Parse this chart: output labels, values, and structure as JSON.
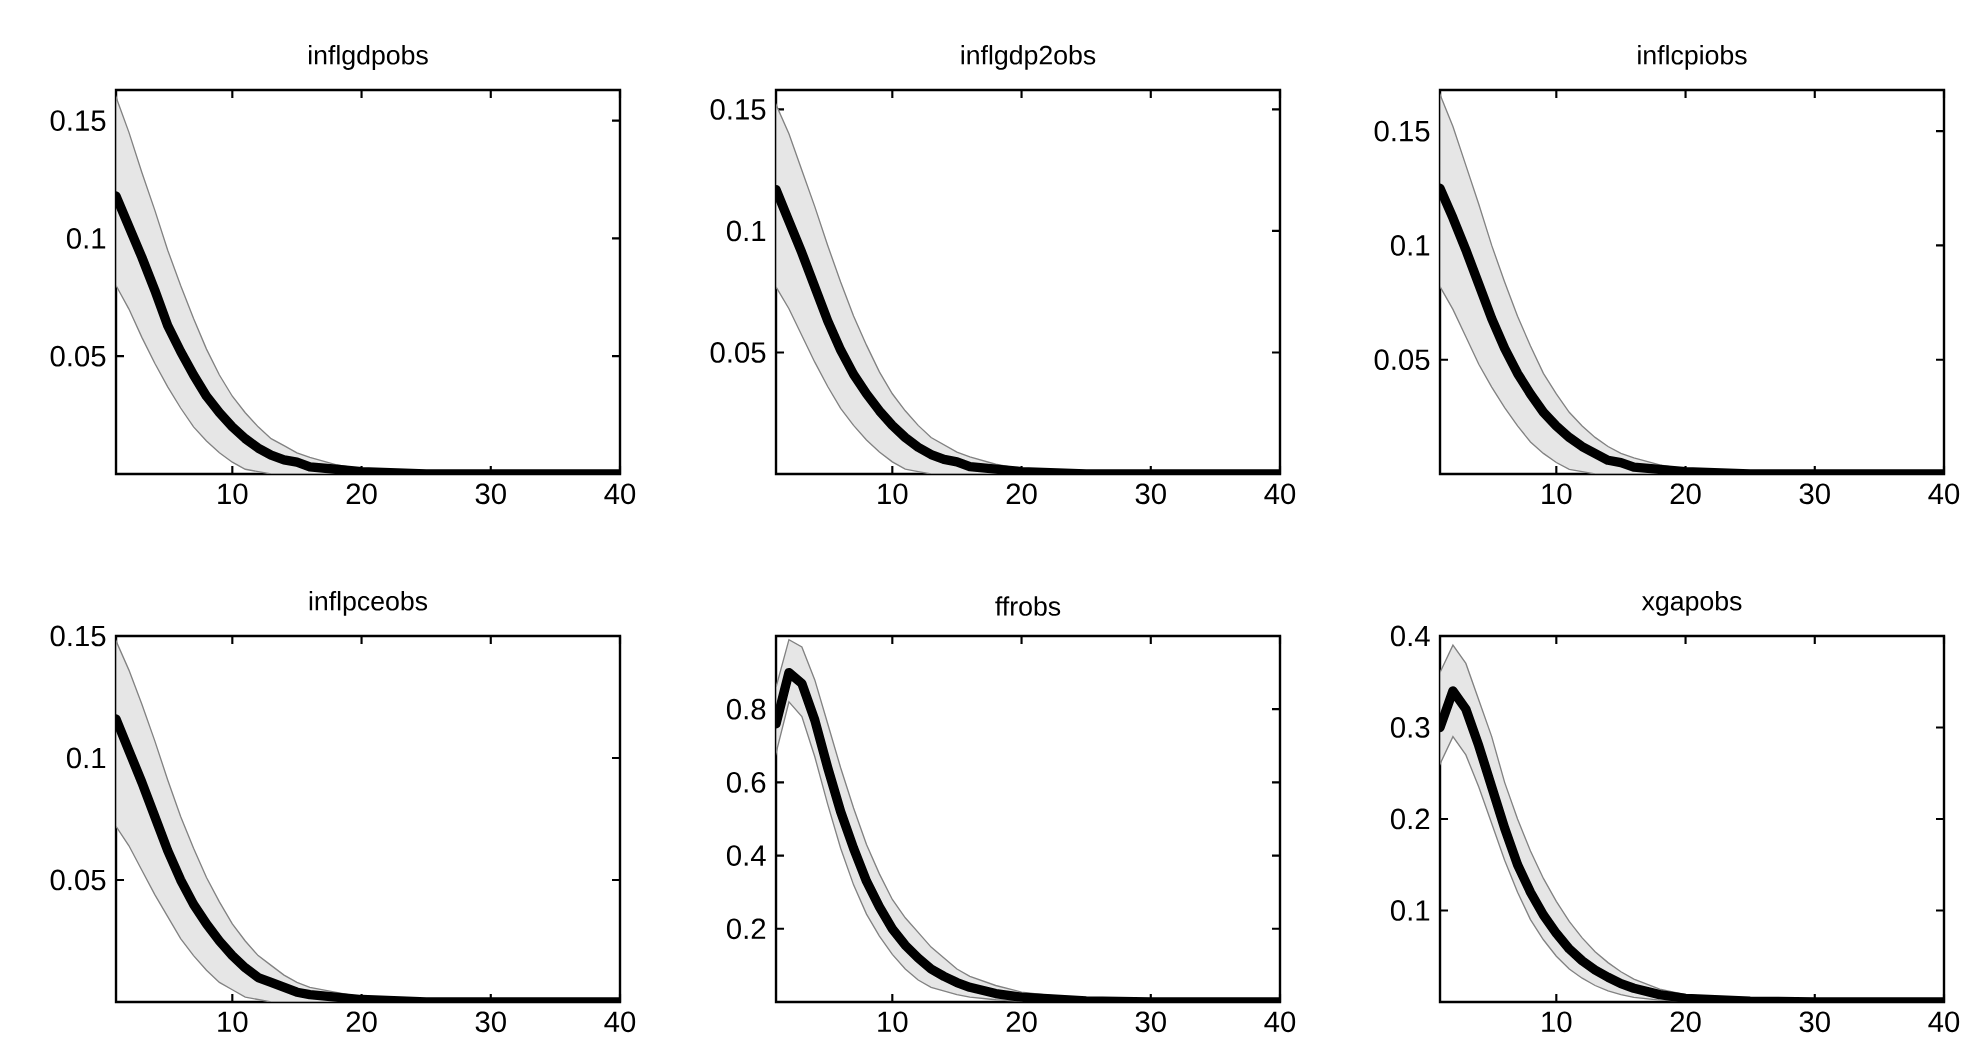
{
  "chart_data": [
    {
      "type": "line",
      "title": "inflgdpobs",
      "x": [
        1,
        2,
        3,
        4,
        5,
        6,
        7,
        8,
        9,
        10,
        11,
        12,
        13,
        14,
        15,
        16,
        18,
        20,
        25,
        30,
        40
      ],
      "xlim": [
        1,
        40
      ],
      "xticks": [
        10,
        20,
        30,
        40
      ],
      "ylim": [
        0,
        0.163
      ],
      "yticks": [
        0.05,
        0.1,
        0.15
      ],
      "series": [
        {
          "color": "#000000",
          "values": [
            0.118,
            0.105,
            0.092,
            0.078,
            0.063,
            0.052,
            0.042,
            0.033,
            0.026,
            0.02,
            0.015,
            0.011,
            0.008,
            0.006,
            0.005,
            0.003,
            0.002,
            0.001,
            0,
            0,
            0
          ],
          "upper": [
            0.16,
            0.145,
            0.128,
            0.112,
            0.095,
            0.08,
            0.066,
            0.053,
            0.042,
            0.033,
            0.026,
            0.02,
            0.015,
            0.012,
            0.009,
            0.007,
            0.004,
            0.002,
            0.001,
            0,
            0
          ],
          "lower": [
            0.08,
            0.07,
            0.058,
            0.047,
            0.037,
            0.028,
            0.02,
            0.014,
            0.009,
            0.005,
            0.002,
            0.001,
            0,
            0,
            0,
            0,
            0,
            0,
            0,
            0,
            0
          ]
        }
      ]
    },
    {
      "type": "line",
      "title": "inflgdp2obs",
      "x": [
        1,
        2,
        3,
        4,
        5,
        6,
        7,
        8,
        9,
        10,
        11,
        12,
        13,
        14,
        15,
        16,
        18,
        20,
        25,
        30,
        40
      ],
      "xlim": [
        1,
        40
      ],
      "xticks": [
        10,
        20,
        30,
        40
      ],
      "ylim": [
        0,
        0.158
      ],
      "yticks": [
        0.05,
        0.1,
        0.15
      ],
      "series": [
        {
          "color": "#000000",
          "values": [
            0.117,
            0.104,
            0.091,
            0.077,
            0.063,
            0.051,
            0.041,
            0.033,
            0.026,
            0.02,
            0.015,
            0.011,
            0.008,
            0.006,
            0.005,
            0.003,
            0.002,
            0.001,
            0,
            0,
            0
          ],
          "upper": [
            0.152,
            0.14,
            0.125,
            0.11,
            0.094,
            0.079,
            0.065,
            0.053,
            0.042,
            0.033,
            0.026,
            0.02,
            0.015,
            0.012,
            0.009,
            0.007,
            0.004,
            0.002,
            0.001,
            0,
            0
          ],
          "lower": [
            0.077,
            0.068,
            0.057,
            0.046,
            0.036,
            0.027,
            0.02,
            0.014,
            0.009,
            0.005,
            0.002,
            0.001,
            0,
            0,
            0,
            0,
            0,
            0,
            0,
            0,
            0
          ]
        }
      ]
    },
    {
      "type": "line",
      "title": "inflcpiobs",
      "x": [
        1,
        2,
        3,
        4,
        5,
        6,
        7,
        8,
        9,
        10,
        11,
        12,
        13,
        14,
        15,
        16,
        18,
        20,
        25,
        30,
        40
      ],
      "xlim": [
        1,
        40
      ],
      "xticks": [
        10,
        20,
        30,
        40
      ],
      "ylim": [
        0,
        0.168
      ],
      "yticks": [
        0.05,
        0.1,
        0.15
      ],
      "series": [
        {
          "color": "#000000",
          "values": [
            0.125,
            0.112,
            0.098,
            0.083,
            0.068,
            0.055,
            0.044,
            0.035,
            0.027,
            0.021,
            0.016,
            0.012,
            0.009,
            0.006,
            0.005,
            0.003,
            0.002,
            0.001,
            0,
            0,
            0
          ],
          "upper": [
            0.166,
            0.152,
            0.135,
            0.118,
            0.1,
            0.084,
            0.069,
            0.056,
            0.044,
            0.035,
            0.027,
            0.021,
            0.016,
            0.012,
            0.009,
            0.007,
            0.004,
            0.002,
            0.001,
            0,
            0
          ],
          "lower": [
            0.082,
            0.072,
            0.06,
            0.048,
            0.038,
            0.029,
            0.021,
            0.014,
            0.009,
            0.005,
            0.002,
            0.001,
            0,
            0,
            0,
            0,
            0,
            0,
            0,
            0,
            0
          ]
        }
      ]
    },
    {
      "type": "line",
      "title": "inflpceobs",
      "x": [
        1,
        2,
        3,
        4,
        5,
        6,
        7,
        8,
        9,
        10,
        11,
        12,
        13,
        14,
        15,
        16,
        18,
        20,
        25,
        30,
        40
      ],
      "xlim": [
        1,
        40
      ],
      "xticks": [
        10,
        20,
        30,
        40
      ],
      "ylim": [
        0,
        0.15
      ],
      "yticks": [
        0.05,
        0.1,
        0.15
      ],
      "series": [
        {
          "color": "#000000",
          "values": [
            0.116,
            0.103,
            0.09,
            0.076,
            0.062,
            0.05,
            0.04,
            0.032,
            0.025,
            0.019,
            0.014,
            0.01,
            0.008,
            0.006,
            0.004,
            0.003,
            0.002,
            0.001,
            0,
            0,
            0
          ],
          "upper": [
            0.148,
            0.136,
            0.122,
            0.107,
            0.091,
            0.076,
            0.063,
            0.051,
            0.041,
            0.032,
            0.025,
            0.019,
            0.015,
            0.011,
            0.008,
            0.006,
            0.004,
            0.002,
            0.001,
            0,
            0
          ],
          "lower": [
            0.072,
            0.064,
            0.054,
            0.044,
            0.035,
            0.026,
            0.019,
            0.013,
            0.008,
            0.005,
            0.002,
            0.001,
            0,
            0,
            0,
            0,
            0,
            0,
            0,
            0,
            0
          ]
        }
      ]
    },
    {
      "type": "line",
      "title": "ffrobs",
      "x": [
        1,
        2,
        3,
        4,
        5,
        6,
        7,
        8,
        9,
        10,
        11,
        12,
        13,
        14,
        15,
        16,
        18,
        20,
        25,
        30,
        40
      ],
      "xlim": [
        1,
        40
      ],
      "xticks": [
        10,
        20,
        30,
        40
      ],
      "ylim": [
        0,
        1
      ],
      "yticks": [
        0.2,
        0.4,
        0.6,
        0.8
      ],
      "series": [
        {
          "color": "#000000",
          "values": [
            0.76,
            0.9,
            0.87,
            0.77,
            0.64,
            0.52,
            0.42,
            0.33,
            0.26,
            0.2,
            0.155,
            0.12,
            0.09,
            0.07,
            0.053,
            0.04,
            0.023,
            0.013,
            0.003,
            0,
            0
          ],
          "upper": [
            0.86,
            0.99,
            0.97,
            0.88,
            0.76,
            0.64,
            0.53,
            0.43,
            0.35,
            0.28,
            0.23,
            0.19,
            0.15,
            0.12,
            0.09,
            0.07,
            0.045,
            0.027,
            0.007,
            0.002,
            0
          ],
          "lower": [
            0.68,
            0.82,
            0.78,
            0.67,
            0.54,
            0.42,
            0.32,
            0.24,
            0.18,
            0.13,
            0.09,
            0.06,
            0.04,
            0.03,
            0.02,
            0.013,
            0.006,
            0.002,
            0,
            0,
            0
          ]
        }
      ]
    },
    {
      "type": "line",
      "title": "xgapobs",
      "x": [
        1,
        2,
        3,
        4,
        5,
        6,
        7,
        8,
        9,
        10,
        11,
        12,
        13,
        14,
        15,
        16,
        18,
        20,
        25,
        30,
        40
      ],
      "xlim": [
        1,
        40
      ],
      "xticks": [
        10,
        20,
        30,
        40
      ],
      "ylim": [
        0,
        0.4
      ],
      "yticks": [
        0.1,
        0.2,
        0.3,
        0.4
      ],
      "series": [
        {
          "color": "#000000",
          "values": [
            0.3,
            0.34,
            0.32,
            0.28,
            0.235,
            0.19,
            0.15,
            0.12,
            0.095,
            0.075,
            0.058,
            0.045,
            0.035,
            0.027,
            0.02,
            0.015,
            0.008,
            0.004,
            0.001,
            0,
            0
          ],
          "upper": [
            0.36,
            0.39,
            0.37,
            0.33,
            0.29,
            0.24,
            0.2,
            0.165,
            0.135,
            0.11,
            0.088,
            0.07,
            0.055,
            0.043,
            0.033,
            0.025,
            0.014,
            0.008,
            0.002,
            0,
            0
          ],
          "lower": [
            0.26,
            0.29,
            0.27,
            0.235,
            0.195,
            0.155,
            0.12,
            0.09,
            0.068,
            0.05,
            0.036,
            0.026,
            0.018,
            0.012,
            0.008,
            0.005,
            0.002,
            0.001,
            0,
            0,
            0
          ]
        }
      ]
    }
  ]
}
